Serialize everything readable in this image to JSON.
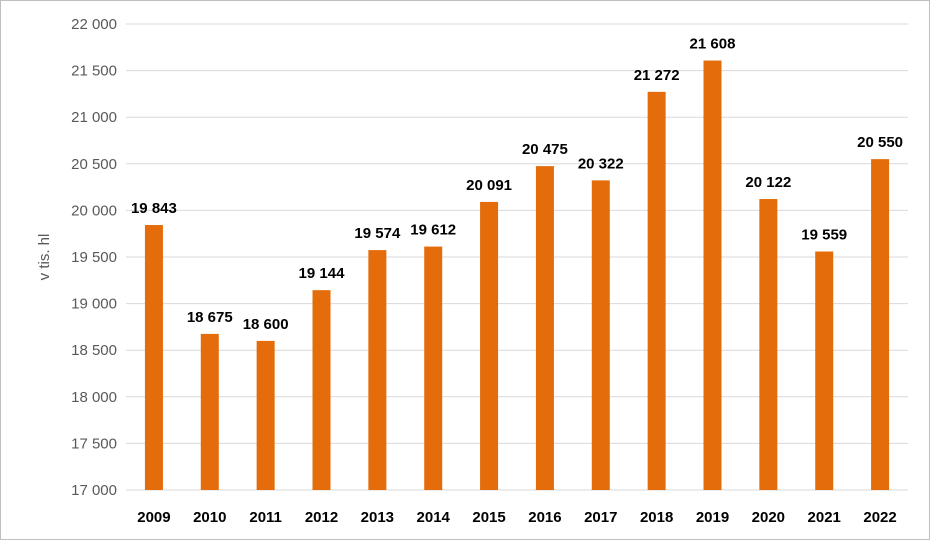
{
  "chart_data": {
    "type": "bar",
    "categories": [
      "2009",
      "2010",
      "2011",
      "2012",
      "2013",
      "2014",
      "2015",
      "2016",
      "2017",
      "2018",
      "2019",
      "2020",
      "2021",
      "2022"
    ],
    "values": [
      19843,
      18675,
      18600,
      19144,
      19574,
      19612,
      20091,
      20475,
      20322,
      21272,
      21608,
      20122,
      19559,
      20550
    ],
    "data_labels": [
      "19 843",
      "18 675",
      "18 600",
      "19 144",
      "19 574",
      "19 612",
      "20 091",
      "20 475",
      "20 322",
      "21 272",
      "21 608",
      "20 122",
      "19 559",
      "20 550"
    ],
    "ylabel": "v tis. hl",
    "xlabel": "",
    "ylim": [
      17000,
      22000
    ],
    "yticks": [
      17000,
      17500,
      18000,
      18500,
      19000,
      19500,
      20000,
      20500,
      21000,
      21500,
      22000
    ],
    "ytick_labels": [
      "17 000",
      "17 500",
      "18 000",
      "18 500",
      "19 000",
      "19 500",
      "20 000",
      "20 500",
      "21 000",
      "21 500",
      "22 000"
    ],
    "grid": true,
    "legend": "none",
    "bar_color": "#e46c0a"
  }
}
